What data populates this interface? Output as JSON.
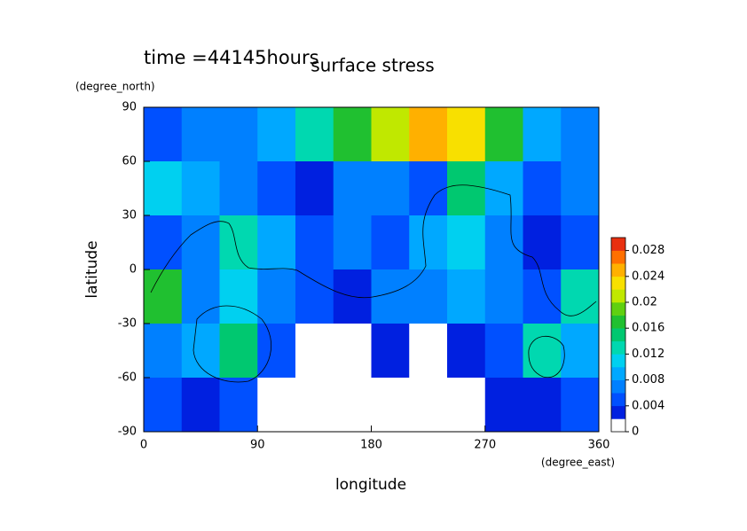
{
  "chart_data": {
    "type": "contour",
    "title": "surface stress",
    "subtitle": "time =44145hours",
    "x_label": "longitude",
    "x_unit": "(degree_east)",
    "y_label": "latitude",
    "y_unit": "(degree_north)",
    "xlim": [
      0,
      360
    ],
    "xticks": [
      0,
      90,
      180,
      270,
      360
    ],
    "ylim": [
      -90,
      90
    ],
    "yticks": [
      -90,
      -60,
      -30,
      0,
      30,
      60,
      90
    ],
    "lon_edges": [
      0,
      30,
      60,
      90,
      120,
      150,
      180,
      210,
      240,
      270,
      300,
      330,
      360
    ],
    "lat_edges": [
      90,
      60,
      30,
      0,
      -30,
      -60,
      -90
    ],
    "z": [
      [
        0.004,
        0.006,
        0.006,
        0.008,
        0.012,
        0.016,
        0.02,
        0.024,
        0.022,
        0.016,
        0.008,
        0.006
      ],
      [
        0.01,
        0.008,
        0.006,
        0.004,
        0.002,
        0.006,
        0.006,
        0.004,
        0.014,
        0.008,
        0.004,
        0.006
      ],
      [
        0.004,
        0.006,
        0.012,
        0.008,
        0.004,
        0.006,
        0.004,
        0.008,
        0.01,
        0.006,
        0.002,
        0.004
      ],
      [
        0.016,
        0.006,
        0.01,
        0.006,
        0.004,
        0.002,
        0.006,
        0.006,
        0.008,
        0.006,
        0.004,
        0.012
      ],
      [
        0.006,
        0.008,
        0.014,
        0.004,
        0.001,
        0.001,
        0.002,
        0.001,
        0.002,
        0.004,
        0.012,
        0.008
      ],
      [
        0.004,
        0.003,
        0.004,
        0.001,
        0.001,
        0.001,
        0.001,
        0.001,
        0.001,
        0.002,
        0.003,
        0.004
      ]
    ],
    "colorbar": {
      "lim": [
        0,
        0.03
      ],
      "ticks": [
        0,
        0.004,
        0.008,
        0.012,
        0.016,
        0.02,
        0.024,
        0.028
      ],
      "levels": [
        0,
        0.002,
        0.004,
        0.006,
        0.008,
        0.01,
        0.012,
        0.014,
        0.016,
        0.018,
        0.02,
        0.022,
        0.024,
        0.026,
        0.028,
        0.03
      ],
      "colors": [
        "#ffffff",
        "#0020e0",
        "#0050ff",
        "#0080ff",
        "#00a8ff",
        "#00d0f0",
        "#00d8b0",
        "#00c870",
        "#20c030",
        "#60d010",
        "#c0e800",
        "#f8e000",
        "#ffb000",
        "#ff7000",
        "#e83010"
      ]
    }
  }
}
